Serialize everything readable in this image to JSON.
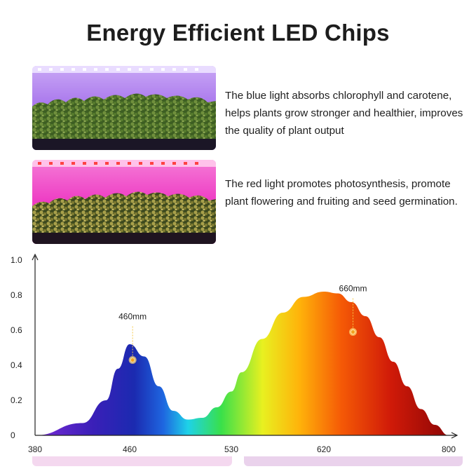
{
  "header": {
    "title": "Energy Efficient LED Chips"
  },
  "features": [
    {
      "light": "blue",
      "text": "The blue light absorbs chlorophyll and carotene, helps plants grow stronger and healthier, improves the quality of plant output",
      "glow_color": "#b47cf0"
    },
    {
      "light": "red",
      "text": "The red light promotes photosynthesis, promote plant flowering and fruiting and seed germination.",
      "glow_color": "#f03cc8"
    }
  ],
  "chart_data": {
    "type": "area",
    "title": "",
    "xlabel": "",
    "ylabel": "",
    "x_ticks": [
      "380",
      "460",
      "530",
      "620",
      "800"
    ],
    "x_tick_values": [
      380,
      460,
      530,
      620,
      800
    ],
    "ylim": [
      0,
      1.0
    ],
    "y_ticks": [
      "0",
      "0.2",
      "0.4",
      "0.6",
      "0.8",
      "1.0"
    ],
    "y_tick_values": [
      0,
      0.2,
      0.4,
      0.6,
      0.8,
      1.0
    ],
    "grid": false,
    "series": [
      {
        "x": [
          380,
          420,
          440,
          450,
          460,
          470,
          480,
          490,
          500,
          510,
          520,
          530,
          540,
          560,
          580,
          600,
          620,
          640,
          660,
          680,
          700,
          720,
          740,
          760,
          780,
          800
        ],
        "values": [
          0.0,
          0.07,
          0.2,
          0.38,
          0.52,
          0.45,
          0.28,
          0.14,
          0.09,
          0.1,
          0.16,
          0.25,
          0.36,
          0.55,
          0.7,
          0.79,
          0.82,
          0.81,
          0.76,
          0.68,
          0.56,
          0.42,
          0.28,
          0.15,
          0.06,
          0.0
        ]
      }
    ],
    "annotations": [
      {
        "label": "460mm",
        "x": 462,
        "y": 0.43
      },
      {
        "label": "660mm",
        "x": 662,
        "y": 0.59
      }
    ]
  }
}
